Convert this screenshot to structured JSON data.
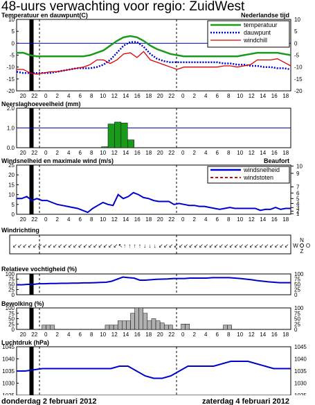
{
  "title": "48-uurs verwachting voor regio: ZuidWest",
  "hour_labels": [
    20,
    22,
    0,
    2,
    4,
    6,
    8,
    10,
    12,
    14,
    16,
    18,
    20,
    22,
    0,
    2,
    4,
    6,
    8,
    10,
    12,
    14,
    16,
    18
  ],
  "colors": {
    "temperature": "#1a9a1a",
    "dewpoint": "#0000cc",
    "windchill": "#dd0000",
    "wind": "#0000cc",
    "gusts": "#dd0000",
    "line": "#0000cc",
    "bar": "#1a9a1a",
    "cloud": "#b0b0b0"
  },
  "footer": {
    "left": "donderdag 2 februari 2012",
    "right": "zaterdag 4 februari 2012"
  },
  "chart_data": [
    {
      "type": "line",
      "title": "Temperatuur en dauwpunt(C)",
      "note": "Nederlandse tijd",
      "ylim": [
        -20,
        10
      ],
      "yticks": [
        10,
        5,
        0,
        -5,
        -10,
        -15,
        -20
      ],
      "series": [
        {
          "name": "temperatuur",
          "values": [
            -4,
            -4,
            -5,
            -5.5,
            -5.5,
            -5.5,
            -5.5,
            -5.5,
            -5.5,
            -5.5,
            -5.5,
            -5,
            -4,
            -3,
            -1,
            1,
            2.5,
            3,
            2.5,
            1,
            -1,
            -2.5,
            -3.5,
            -4.5,
            -5,
            -5.5,
            -5.5,
            -5.5,
            -5.5,
            -5.5,
            -5.5,
            -5.5,
            -5.5,
            -5.5,
            -5,
            -4.5,
            -4,
            -4,
            -4,
            -4,
            -4.5,
            -5
          ]
        },
        {
          "name": "dauwpunt",
          "values": [
            -12,
            -12.5,
            -12.5,
            -12.5,
            -12.5,
            -12.5,
            -12,
            -11.5,
            -11,
            -10.5,
            -10.5,
            -10.5,
            -10,
            -9,
            -7,
            -4,
            -1,
            0.5,
            0.5,
            -1.5,
            -4.5,
            -6.5,
            -7.5,
            -8,
            -8,
            -8,
            -8,
            -8,
            -8,
            -8,
            -8,
            -8.5,
            -8.5,
            -9,
            -9,
            -9.5,
            -9.5,
            -10,
            -10,
            -10.5,
            -10.5,
            -11
          ]
        },
        {
          "name": "windchill",
          "values": [
            -11,
            -11,
            -12.5,
            -13,
            -12.5,
            -12,
            -12,
            -11.5,
            -11,
            -10.5,
            -10,
            -9,
            -7,
            -7,
            -8.5,
            -7,
            -4.5,
            -4,
            -6,
            -3.5,
            -7,
            -8,
            -9,
            -10,
            -11,
            -10,
            -10,
            -10,
            -10,
            -10,
            -10,
            -9.5,
            -9.5,
            -10,
            -9.5,
            -9,
            -7,
            -7,
            -7,
            -6.5,
            -8,
            -9.5
          ]
        }
      ]
    },
    {
      "type": "bar",
      "title": "Neerslaghoeveelheid (mm)",
      "ylim": [
        0,
        2
      ],
      "yticks": [
        2.0,
        1.0,
        0.0
      ],
      "values": [
        0,
        0,
        0,
        0,
        0,
        0,
        0,
        0,
        0,
        0,
        0,
        0,
        0,
        0.05,
        1.2,
        1.3,
        1.25,
        0.4,
        0,
        0,
        0,
        0,
        0,
        0,
        0,
        0,
        0,
        0,
        0,
        0,
        0,
        0,
        0,
        0,
        0,
        0,
        0,
        0,
        0,
        0,
        0,
        0
      ]
    },
    {
      "type": "line",
      "title": "Windsnelheid en maximale wind (m/s)",
      "note": "Beaufort",
      "ylim": [
        0,
        25
      ],
      "yticks": [
        25,
        20,
        15,
        10,
        5,
        0
      ],
      "beaufort_ticks": [
        10,
        9,
        7,
        6,
        5,
        4,
        3,
        2,
        1
      ],
      "series": [
        {
          "name": "windsnelheid",
          "values": [
            8,
            8,
            9,
            7,
            8,
            7,
            7,
            6,
            5,
            4.5,
            4,
            3.5,
            3,
            2,
            1,
            3,
            4.5,
            6,
            5,
            4.5,
            10,
            8,
            9,
            11,
            10,
            8.5,
            8,
            7,
            6.5,
            6.5,
            6.5,
            5,
            5.5,
            5,
            4.5,
            4.5,
            4,
            4,
            3.5,
            3,
            2.5,
            3,
            3.5,
            3,
            3,
            3,
            3,
            3,
            2,
            2.5,
            2.5,
            3.5,
            2.5,
            3,
            3
          ]
        },
        {
          "name": "windstoten",
          "values": []
        }
      ]
    },
    {
      "type": "table",
      "title": "Windrichting",
      "arrows": [
        "↙",
        "↙",
        "↙",
        "↙",
        "↙",
        "↙",
        "↙",
        "↙",
        "↙",
        "↙",
        "↙",
        "↙",
        "↙",
        "↙",
        "↙",
        "↙",
        "↙",
        "↙",
        "↙",
        "↙",
        "↙",
        "↖",
        "↑",
        "↑",
        "↑",
        "↑",
        "↓",
        "↓",
        "↓",
        "↙",
        "↙",
        "↙",
        "↙",
        "↙",
        "↙",
        "↙",
        "↙",
        "↙",
        "↙",
        "↙",
        "↙",
        "↙",
        "↙",
        "↙",
        "↙",
        "↙",
        "↙",
        "↙",
        "↙",
        "↙",
        "↙",
        "↙",
        "↙",
        "↙",
        "↙"
      ],
      "compass": {
        "n": "N",
        "w": "W",
        "o": "O",
        "z": "Z"
      }
    },
    {
      "type": "line",
      "title": "Relatieve vochtigheid (%)",
      "ylim": [
        0,
        100
      ],
      "yticks": [
        100,
        75,
        50,
        25,
        0
      ],
      "values": [
        48,
        48,
        50,
        50,
        53,
        53,
        54,
        54,
        55,
        55,
        56,
        56,
        57,
        57,
        58,
        59,
        60,
        65,
        75,
        85,
        82,
        80,
        70,
        70,
        72,
        74,
        75,
        76,
        78,
        78,
        78,
        80,
        80,
        80,
        80,
        82,
        82,
        82,
        82,
        80,
        78,
        75,
        72,
        68,
        65,
        62,
        60,
        58,
        58,
        58
      ]
    },
    {
      "type": "bar",
      "title": "Bewolking (%)",
      "ylim": [
        0,
        100
      ],
      "yticks": [
        100,
        75,
        50,
        25,
        0
      ],
      "values": [
        0,
        0,
        0,
        0,
        0,
        0,
        20,
        20,
        20,
        0,
        0,
        0,
        0,
        0,
        0,
        0,
        0,
        0,
        0,
        0,
        0,
        20,
        20,
        20,
        40,
        40,
        40,
        75,
        100,
        100,
        75,
        40,
        50,
        40,
        30,
        20,
        20,
        0,
        0,
        25,
        25,
        0,
        0,
        0,
        0,
        0,
        0,
        0,
        0,
        20,
        20,
        0,
        0,
        0,
        0,
        0,
        0,
        0,
        0,
        0,
        0,
        0,
        0,
        0,
        0
      ]
    },
    {
      "type": "line",
      "title": "Luchtdruk (hPa)",
      "ylim": [
        1025,
        1045
      ],
      "yticks": [
        1045,
        1040,
        1035,
        1030,
        1025
      ],
      "values": [
        1035,
        1035,
        1035.5,
        1036,
        1036,
        1036,
        1036,
        1036,
        1036,
        1036,
        1036,
        1036,
        1037,
        1037,
        1035,
        1033,
        1032,
        1032,
        1033,
        1035,
        1037,
        1037,
        1037,
        1037,
        1038,
        1039,
        1039,
        1039,
        1038,
        1037,
        1036,
        1036,
        1036
      ]
    }
  ]
}
